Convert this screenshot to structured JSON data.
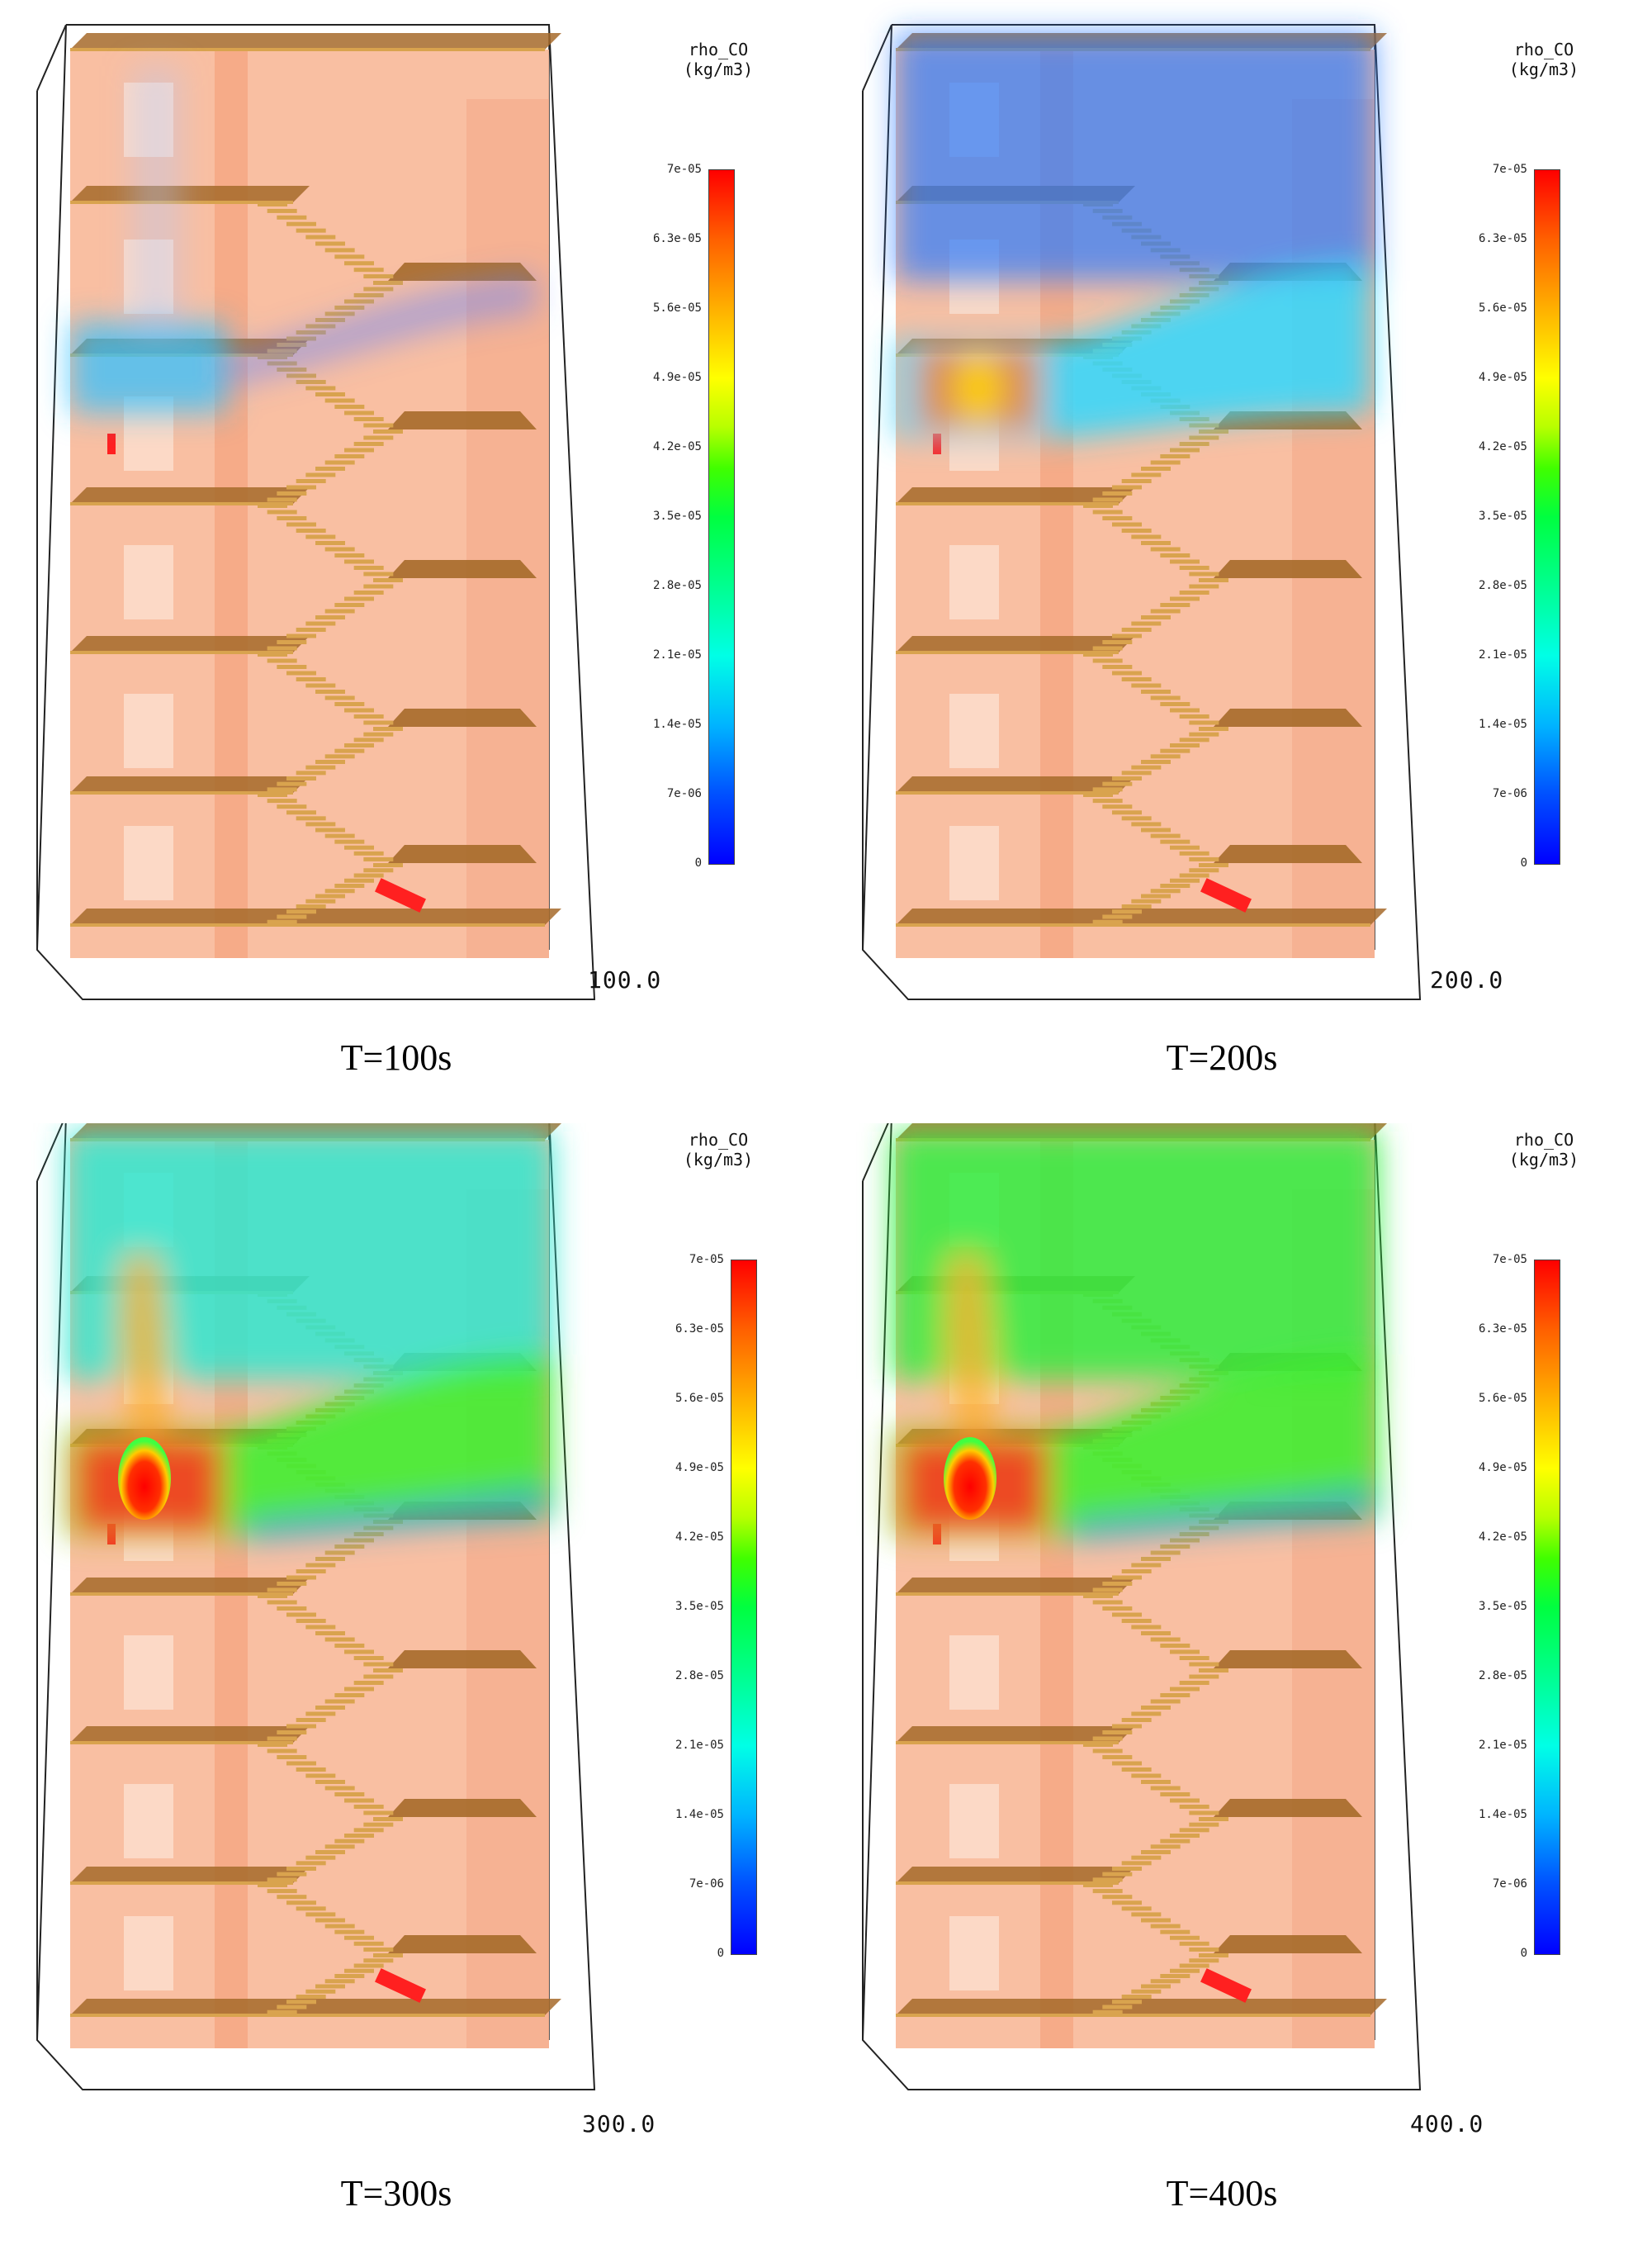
{
  "legend": {
    "title_line1": "rho_CO",
    "title_line2": "(kg/m3)",
    "ticks": [
      "7e-05",
      "6.3e-05",
      "5.6e-05",
      "4.9e-05",
      "4.2e-05",
      "3.5e-05",
      "2.8e-05",
      "2.1e-05",
      "1.4e-05",
      "7e-06",
      "0"
    ],
    "colors": [
      "#0000ff",
      "#00b4ff",
      "#00ffe6",
      "#00ff40",
      "#ffff00",
      "#ff6000",
      "#ff0000"
    ]
  },
  "panels": [
    {
      "time_readout": "100.0",
      "caption": "T=100s",
      "smoke_level": 1
    },
    {
      "time_readout": "200.0",
      "caption": "T=200s",
      "smoke_level": 2
    },
    {
      "time_readout": "300.0",
      "caption": "T=300s",
      "smoke_level": 3
    },
    {
      "time_readout": "400.0",
      "caption": "T=400s",
      "smoke_level": 4
    }
  ],
  "scene": {
    "wall_color": "#f8b898",
    "floor_color": "#a66a2a",
    "stair_color": "#d9a34e",
    "fire_color": "#ff2020"
  }
}
